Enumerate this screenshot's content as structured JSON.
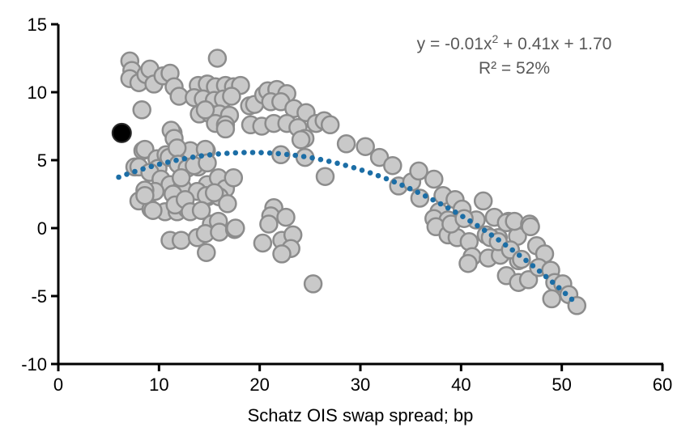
{
  "chart_data": {
    "type": "scatter",
    "title": "",
    "xlabel": "Schatz OIS swap spread; bp",
    "ylabel": "",
    "xlim": [
      0,
      60
    ],
    "ylim": [
      -10,
      15
    ],
    "x_ticks": [
      0,
      10,
      20,
      30,
      40,
      50,
      60
    ],
    "y_ticks": [
      15,
      10,
      5,
      0,
      -5,
      -10
    ],
    "grid": false,
    "legend": "none",
    "annotation": {
      "equation_prefix": "y = -0.01x",
      "equation_sup": "2",
      "equation_suffix": " + 0.41x + 1.70",
      "r_squared": "R² = 52%"
    },
    "colors": {
      "marker_fill": "#c9c9c9",
      "marker_stroke": "#8c8c8c",
      "highlight_fill": "#000000",
      "trendline": "#1c6ea6",
      "axis": "#000000",
      "annotation_text": "#595959"
    },
    "series": [
      {
        "name": "observations",
        "marker": "circle",
        "points": [
          [
            7.1,
            12.3
          ],
          [
            7.3,
            11.6
          ],
          [
            7.1,
            11.0
          ],
          [
            8.0,
            10.7
          ],
          [
            8.7,
            11.3
          ],
          [
            9.1,
            11.7
          ],
          [
            9.5,
            10.6
          ],
          [
            10.4,
            11.2
          ],
          [
            11.1,
            11.4
          ],
          [
            11.5,
            10.4
          ],
          [
            12.0,
            9.7
          ],
          [
            8.3,
            8.7
          ],
          [
            15.8,
            12.5
          ],
          [
            13.9,
            10.5
          ],
          [
            14.8,
            10.6
          ],
          [
            15.6,
            10.4
          ],
          [
            16.6,
            10.5
          ],
          [
            17.4,
            10.4
          ],
          [
            18.1,
            10.5
          ],
          [
            13.5,
            9.6
          ],
          [
            14.4,
            9.5
          ],
          [
            15.5,
            9.4
          ],
          [
            16.4,
            9.5
          ],
          [
            17.2,
            9.7
          ],
          [
            19.0,
            9.0
          ],
          [
            14.0,
            8.4
          ],
          [
            15.1,
            8.4
          ],
          [
            16.0,
            8.4
          ],
          [
            17.0,
            8.3
          ],
          [
            15.6,
            7.7
          ],
          [
            16.6,
            7.6
          ],
          [
            14.6,
            8.7
          ],
          [
            19.5,
            9.1
          ],
          [
            20.4,
            9.8
          ],
          [
            20.8,
            10.1
          ],
          [
            21.7,
            10.2
          ],
          [
            22.7,
            9.9
          ],
          [
            21.1,
            9.3
          ],
          [
            22.1,
            9.3
          ],
          [
            23.4,
            8.8
          ],
          [
            24.6,
            8.5
          ],
          [
            19.1,
            7.6
          ],
          [
            20.2,
            7.5
          ],
          [
            21.4,
            7.7
          ],
          [
            22.7,
            7.7
          ],
          [
            23.8,
            7.4
          ],
          [
            24.5,
            6.6
          ],
          [
            25.6,
            7.7
          ],
          [
            26.4,
            7.9
          ],
          [
            27.0,
            7.6
          ],
          [
            24.1,
            6.5
          ],
          [
            28.6,
            6.2
          ],
          [
            30.5,
            6.0
          ],
          [
            31.9,
            5.2
          ],
          [
            33.2,
            4.6
          ],
          [
            11.4,
            7.0
          ],
          [
            16.6,
            7.3
          ],
          [
            11.2,
            7.2
          ],
          [
            11.5,
            6.6
          ],
          [
            8.4,
            5.7
          ],
          [
            8.6,
            5.8
          ],
          [
            7.6,
            4.5
          ],
          [
            9.8,
            5.1
          ],
          [
            9.9,
            4.4
          ],
          [
            10.7,
            5.4
          ],
          [
            8.0,
            4.5
          ],
          [
            9.1,
            4.1
          ],
          [
            11.0,
            5.2
          ],
          [
            12.2,
            5.5
          ],
          [
            13.1,
            5.7
          ],
          [
            14.7,
            5.7
          ],
          [
            11.8,
            5.9
          ],
          [
            11.9,
            4.7
          ],
          [
            12.8,
            4.4
          ],
          [
            13.9,
            4.5
          ],
          [
            13.5,
            4.6
          ],
          [
            14.6,
            5.8
          ],
          [
            14.8,
            4.8
          ],
          [
            10.2,
            3.6
          ],
          [
            11.1,
            3.2
          ],
          [
            12.3,
            3.0
          ],
          [
            12.2,
            3.7
          ],
          [
            9.6,
            2.7
          ],
          [
            8.6,
            2.8
          ],
          [
            14.8,
            3.2
          ],
          [
            15.9,
            3.7
          ],
          [
            13.8,
            2.7
          ],
          [
            14.8,
            2.3
          ],
          [
            8.0,
            2.0
          ],
          [
            9.2,
            1.4
          ],
          [
            10.6,
            1.2
          ],
          [
            11.8,
            1.2
          ],
          [
            12.8,
            1.4
          ],
          [
            16.6,
            2.9
          ],
          [
            17.4,
            3.7
          ],
          [
            16.0,
            2.3
          ],
          [
            16.8,
            1.8
          ],
          [
            8.6,
            2.4
          ],
          [
            9.4,
            1.3
          ],
          [
            11.4,
            2.5
          ],
          [
            11.6,
            1.7
          ],
          [
            12.6,
            2.1
          ],
          [
            13.1,
            1.2
          ],
          [
            14.7,
            2.4
          ],
          [
            15.5,
            2.6
          ],
          [
            14.2,
            1.3
          ],
          [
            15.2,
            0.3
          ],
          [
            15.9,
            0.5
          ],
          [
            11.1,
            -0.9
          ],
          [
            12.2,
            -0.9
          ],
          [
            13.8,
            -0.7
          ],
          [
            14.6,
            -0.4
          ],
          [
            16.0,
            -0.3
          ],
          [
            17.5,
            -0.1
          ],
          [
            14.7,
            -1.8
          ],
          [
            17.6,
            0.0
          ],
          [
            21.4,
            1.5
          ],
          [
            21.1,
            0.9
          ],
          [
            22.6,
            0.8
          ],
          [
            20.9,
            0.3
          ],
          [
            20.3,
            -1.1
          ],
          [
            22.2,
            -0.9
          ],
          [
            23.3,
            -0.5
          ],
          [
            23.1,
            -1.5
          ],
          [
            22.2,
            -1.9
          ],
          [
            22.1,
            5.4
          ],
          [
            24.5,
            5.2
          ],
          [
            26.5,
            3.8
          ],
          [
            25.3,
            -4.1
          ],
          [
            33.8,
            3.1
          ],
          [
            35.1,
            3.4
          ],
          [
            35.8,
            4.2
          ],
          [
            37.3,
            3.6
          ],
          [
            35.9,
            2.2
          ],
          [
            38.2,
            2.4
          ],
          [
            39.4,
            2.1
          ],
          [
            42.2,
            2.0
          ],
          [
            37.8,
            1.2
          ],
          [
            40.1,
            1.4
          ],
          [
            37.3,
            0.7
          ],
          [
            38.7,
            0.6
          ],
          [
            37.5,
            0.1
          ],
          [
            38.7,
            -0.5
          ],
          [
            39.6,
            -0.7
          ],
          [
            40.8,
            -1.0
          ],
          [
            41.5,
            0.6
          ],
          [
            43.3,
            0.8
          ],
          [
            42.5,
            -0.5
          ],
          [
            43.7,
            -0.7
          ],
          [
            44.7,
            0.5
          ],
          [
            45.6,
            -0.6
          ],
          [
            41.1,
            -2.1
          ],
          [
            42.7,
            -2.2
          ],
          [
            43.9,
            -2.0
          ],
          [
            40.7,
            -2.6
          ],
          [
            45.7,
            -2.4
          ],
          [
            44.5,
            0.4
          ],
          [
            45.3,
            0.5
          ],
          [
            46.8,
            0.3
          ],
          [
            46.9,
            0.1
          ],
          [
            42.9,
            -0.7
          ],
          [
            43.7,
            -1.0
          ],
          [
            44.9,
            -1.6
          ],
          [
            46.0,
            -2.3
          ],
          [
            39.0,
            0.3
          ],
          [
            40.3,
            0.7
          ],
          [
            44.5,
            -3.5
          ],
          [
            45.7,
            -4.0
          ],
          [
            46.7,
            -3.8
          ],
          [
            47.5,
            -1.3
          ],
          [
            48.3,
            -1.9
          ],
          [
            47.7,
            -2.9
          ],
          [
            48.9,
            -3.1
          ],
          [
            49.3,
            -4.0
          ],
          [
            50.1,
            -4.1
          ],
          [
            49.0,
            -5.2
          ],
          [
            50.7,
            -4.9
          ],
          [
            51.5,
            -5.7
          ]
        ]
      },
      {
        "name": "highlighted-observation",
        "marker": "circle",
        "points": [
          [
            6.3,
            7.0
          ]
        ]
      },
      {
        "name": "quadratic-trendline",
        "style": "dotted",
        "coefficients": {
          "a": -0.0106,
          "b": 0.4045,
          "c": 1.705
        },
        "x_range": [
          6.0,
          51.6
        ]
      }
    ]
  }
}
